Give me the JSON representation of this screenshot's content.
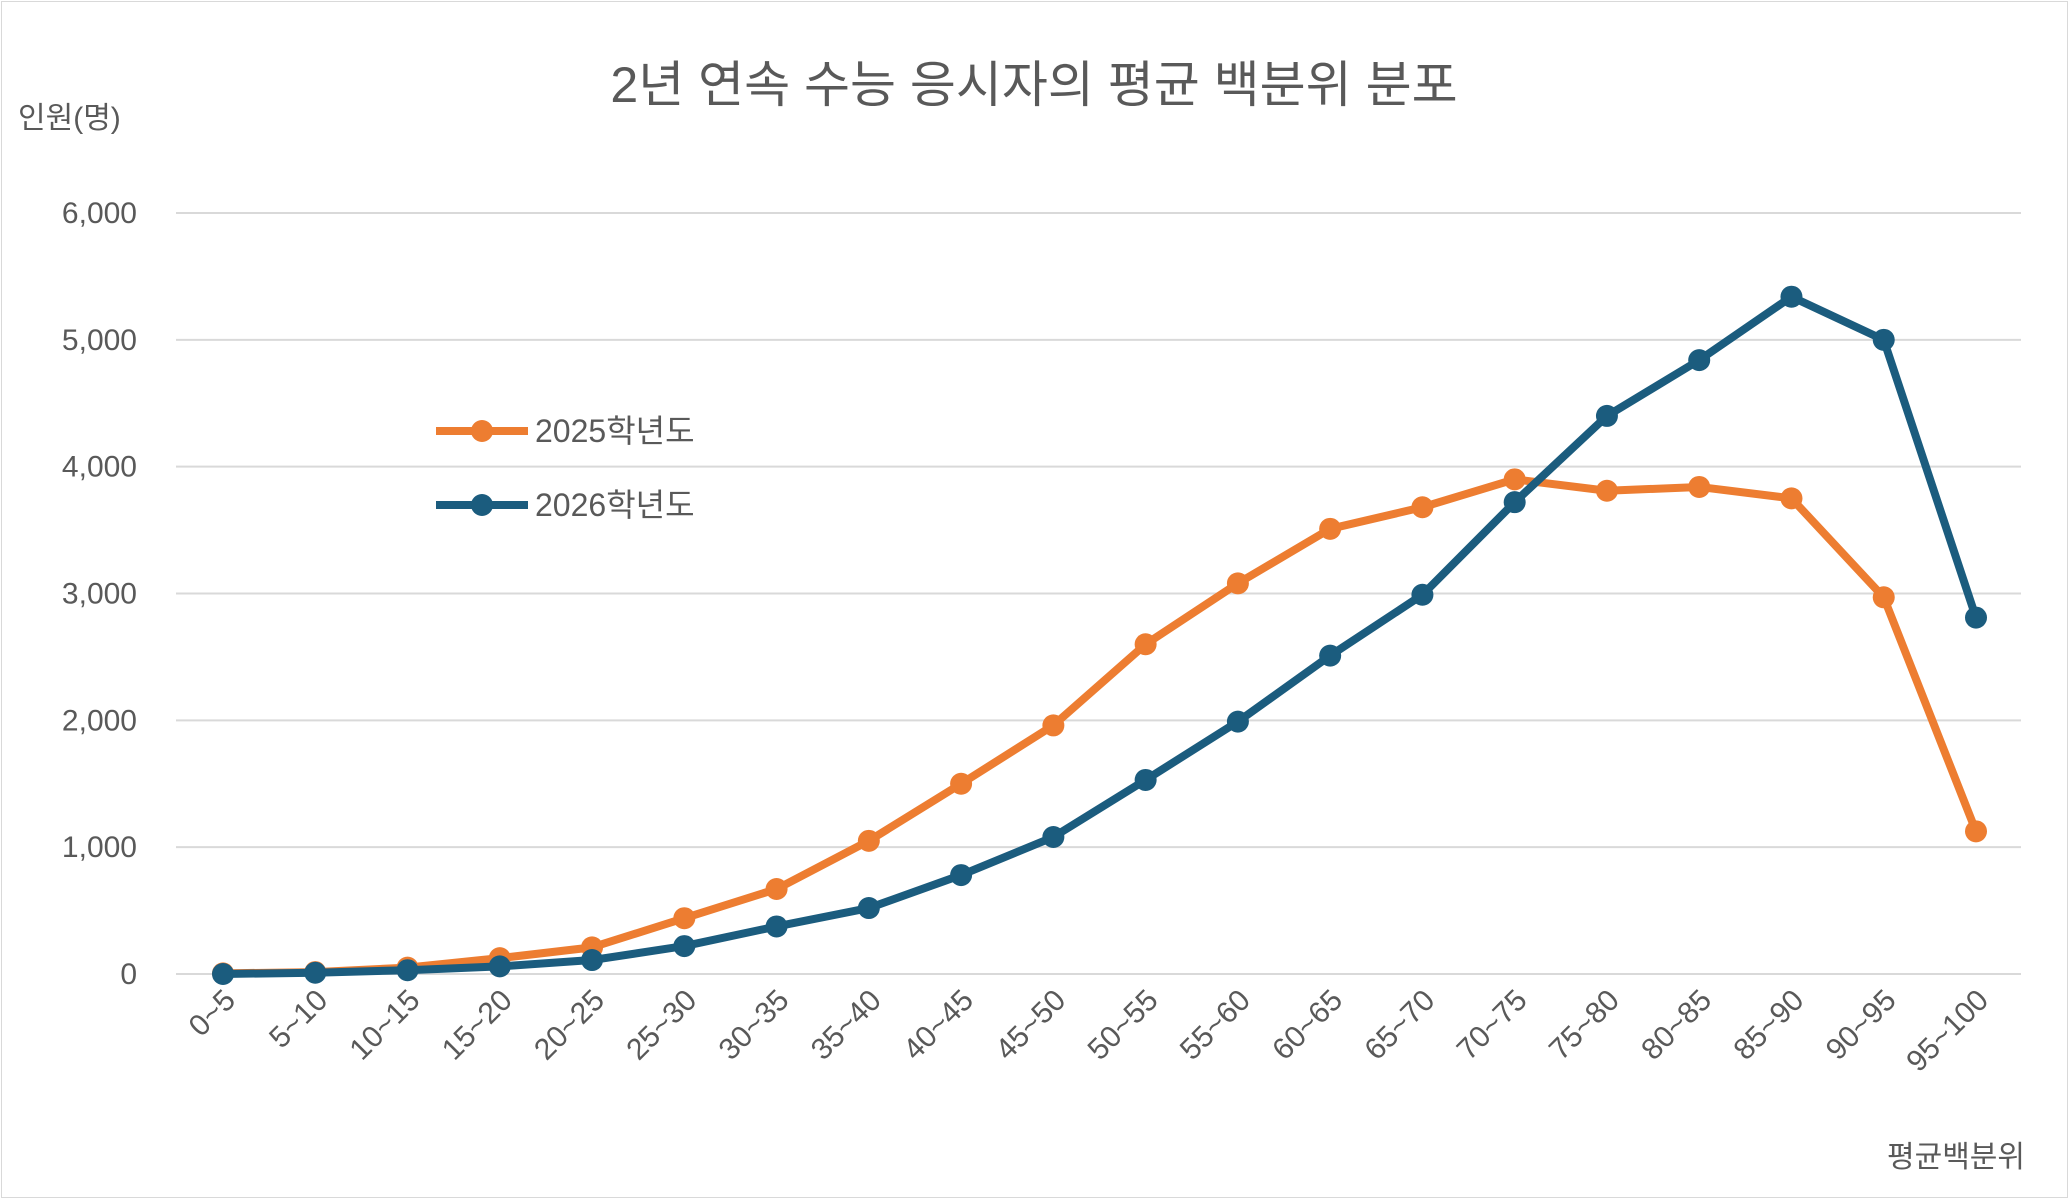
{
  "chart_data": {
    "type": "line",
    "title": "2년 연속 수능 응시자의 평균 백분위 분포",
    "ylabel": "인원(명)",
    "xlabel": "평균백분위",
    "ylim": [
      0,
      6000
    ],
    "yticks": [
      0,
      1000,
      2000,
      3000,
      4000,
      5000,
      6000
    ],
    "ytick_labels": [
      "0",
      "1,000",
      "2,000",
      "3,000",
      "4,000",
      "5,000",
      "6,000"
    ],
    "grid": true,
    "legend_position": "upper-left",
    "categories": [
      "0~5",
      "5~10",
      "10~15",
      "15~20",
      "20~25",
      "25~30",
      "30~35",
      "35~40",
      "40~45",
      "45~50",
      "50~55",
      "55~60",
      "60~65",
      "65~70",
      "70~75",
      "75~80",
      "80~85",
      "85~90",
      "90~95",
      "95~100"
    ],
    "series": [
      {
        "name": "2025학년도",
        "color": "#ED7D31",
        "values": [
          5,
          15,
          50,
          125,
          210,
          440,
          670,
          1050,
          1500,
          1960,
          2600,
          3080,
          3510,
          3680,
          3900,
          3810,
          3840,
          3750,
          2970,
          1125
        ]
      },
      {
        "name": "2026학년도",
        "color": "#1B5C7E",
        "values": [
          0,
          10,
          30,
          60,
          110,
          220,
          375,
          520,
          780,
          1080,
          1530,
          1990,
          2510,
          2990,
          3720,
          4400,
          4840,
          5340,
          5000,
          2810
        ]
      }
    ]
  }
}
